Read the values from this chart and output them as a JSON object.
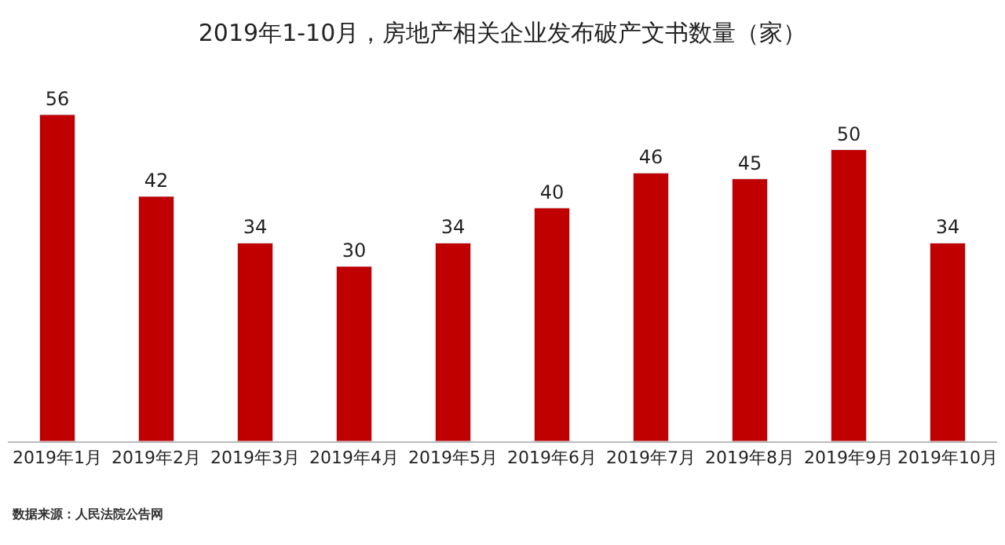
{
  "chart_data": {
    "type": "bar",
    "title": "2019年1-10月，房地产相关企业发布破产文书数量（家）",
    "categories": [
      "2019年1月",
      "2019年2月",
      "2019年3月",
      "2019年4月",
      "2019年5月",
      "2019年6月",
      "2019年7月",
      "2019年8月",
      "2019年9月",
      "2019年10月"
    ],
    "values": [
      56,
      42,
      34,
      30,
      34,
      40,
      46,
      45,
      50,
      34
    ],
    "color": "#c00000",
    "data_labels": true,
    "annotations": [
      "数据来源：人民法院公告网"
    ]
  }
}
